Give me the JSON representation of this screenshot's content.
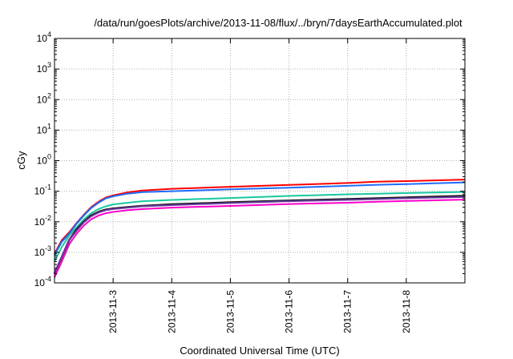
{
  "chart_data": {
    "type": "line",
    "title": "/data/run/goesPlots/archive/2013-11-08/flux/../bryn/7daysEarthAccumulated.plot",
    "xlabel": "Coordinated Universal Time (UTC)",
    "ylabel": "cGy",
    "y_scale": "log",
    "ylim": [
      0.0001,
      10000
    ],
    "xlim": [
      "2013-11-02",
      "2013-11-09"
    ],
    "x_ticks": [
      "2013-11-3",
      "2013-11-4",
      "2013-11-5",
      "2013-11-6",
      "2013-11-7",
      "2013-11-8"
    ],
    "x_tick_dates": [
      "2013-11-03",
      "2013-11-04",
      "2013-11-05",
      "2013-11-06",
      "2013-11-07",
      "2013-11-08"
    ],
    "y_ticks": [
      {
        "base": "10",
        "exp": "-4",
        "value": 0.0001
      },
      {
        "base": "10",
        "exp": "-3",
        "value": 0.001
      },
      {
        "base": "10",
        "exp": "-2",
        "value": 0.01
      },
      {
        "base": "10",
        "exp": "-1",
        "value": 0.1
      },
      {
        "base": "10",
        "exp": "0",
        "value": 1
      },
      {
        "base": "10",
        "exp": "1",
        "value": 10
      },
      {
        "base": "10",
        "exp": "2",
        "value": 100
      },
      {
        "base": "10",
        "exp": "3",
        "value": 1000
      },
      {
        "base": "10",
        "exp": "4",
        "value": 10000
      }
    ],
    "grid": true,
    "legend": "none",
    "x": [
      "2013-11-02 00:00",
      "2013-11-02 03:00",
      "2013-11-02 06:00",
      "2013-11-02 09:00",
      "2013-11-02 12:00",
      "2013-11-02 15:00",
      "2013-11-02 18:00",
      "2013-11-02 21:00",
      "2013-11-03 00:00",
      "2013-11-03 06:00",
      "2013-11-03 12:00",
      "2013-11-04 00:00",
      "2013-11-05 00:00",
      "2013-11-06 00:00",
      "2013-11-07 00:00",
      "2013-11-07 12:00",
      "2013-11-08 00:00",
      "2013-11-09 00:00"
    ],
    "series": [
      {
        "color": "#ff0000",
        "values": [
          0.0009,
          0.0025,
          0.0045,
          0.009,
          0.017,
          0.03,
          0.045,
          0.062,
          0.073,
          0.092,
          0.105,
          0.12,
          0.14,
          0.16,
          0.185,
          0.205,
          0.215,
          0.24
        ]
      },
      {
        "color": "#1f6cff",
        "values": [
          0.0008,
          0.0022,
          0.004,
          0.0085,
          0.016,
          0.028,
          0.042,
          0.058,
          0.068,
          0.083,
          0.093,
          0.1,
          0.115,
          0.13,
          0.15,
          0.162,
          0.17,
          0.195
        ]
      },
      {
        "color": "#18c8a0",
        "values": [
          0.0005,
          0.0015,
          0.0035,
          0.0065,
          0.012,
          0.019,
          0.026,
          0.032,
          0.037,
          0.042,
          0.047,
          0.052,
          0.06,
          0.07,
          0.079,
          0.083,
          0.087,
          0.095
        ]
      },
      {
        "color": "#111111",
        "values": [
          0.0002,
          0.0007,
          0.0025,
          0.0055,
          0.01,
          0.016,
          0.021,
          0.025,
          0.027,
          0.03,
          0.033,
          0.037,
          0.043,
          0.049,
          0.055,
          0.058,
          0.062,
          0.07
        ]
      },
      {
        "color": "#6a3ba0",
        "values": [
          0.0002,
          0.0007,
          0.0025,
          0.005,
          0.0095,
          0.015,
          0.02,
          0.024,
          0.026,
          0.029,
          0.032,
          0.035,
          0.041,
          0.047,
          0.052,
          0.055,
          0.059,
          0.065
        ]
      },
      {
        "color": "#ff00cc",
        "values": [
          0.00015,
          0.0005,
          0.0018,
          0.004,
          0.0075,
          0.012,
          0.016,
          0.019,
          0.021,
          0.024,
          0.026,
          0.029,
          0.033,
          0.038,
          0.042,
          0.045,
          0.048,
          0.053
        ]
      }
    ]
  }
}
